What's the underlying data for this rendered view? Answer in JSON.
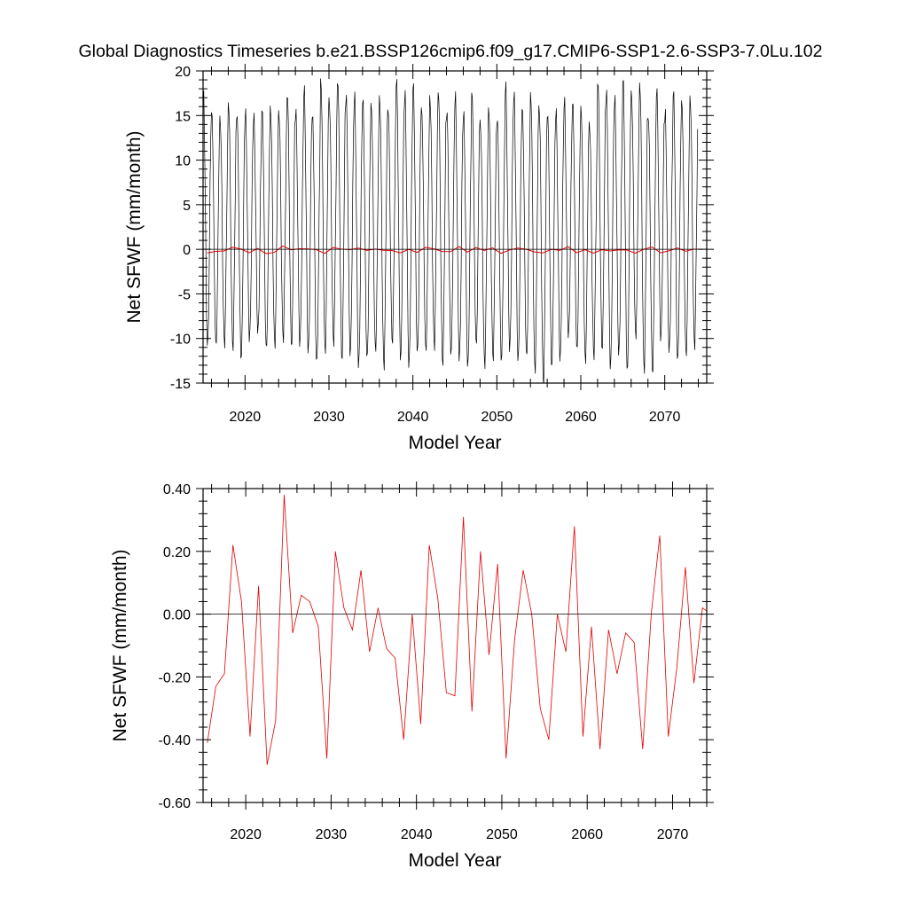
{
  "figure_title": "Global Diagnostics Timeseries b.e21.BSSP126cmip6.f09_g17.CMIP6-SSP1-2.6-SSP3-7.0Lu.102",
  "colors": {
    "monthly": "#000000",
    "annual": "#e00000",
    "zero_line": "#000000",
    "frame": "#000000"
  },
  "chart_data": [
    {
      "type": "line",
      "title": "",
      "xlabel": "Model Year",
      "ylabel": "Net SFWF (mm/month)",
      "xlim": [
        2015,
        2075
      ],
      "ylim": [
        -15,
        20
      ],
      "xticks": [
        2020,
        2030,
        2040,
        2050,
        2060,
        2070
      ],
      "xtick_labels": [
        "2020",
        "2030",
        "2040",
        "2050",
        "2060",
        "2070"
      ],
      "yticks": [
        -15,
        -10,
        -5,
        0,
        5,
        10,
        15,
        20
      ],
      "ytick_labels": [
        "-15",
        "-10",
        "-5",
        "0",
        "5",
        "10",
        "15",
        "20"
      ],
      "reference_line": 0,
      "grid": false,
      "series": [
        {
          "kind": "monthly",
          "x_start": 2015.5,
          "peaks": [
            17.2,
            15.4,
            15.0,
            16.9,
            15.5,
            15.3,
            14.6,
            15.6,
            16.1,
            15.9,
            17.8,
            15.4,
            17.7,
            14.9,
            19.2,
            17.3,
            19.4,
            17.2,
            17.0,
            16.6,
            16.4,
            17.5,
            16.3,
            19.2,
            17.2,
            18.3,
            15.9,
            17.4,
            18.2,
            15.6,
            17.1,
            15.0,
            17.6,
            14.6,
            16.4,
            14.9,
            18.3,
            17.1,
            15.8,
            17.7,
            16.6,
            15.6,
            15.4,
            16.4,
            16.4,
            16.1,
            14.6,
            19.3,
            17.7,
            16.6,
            19.0,
            17.8,
            19.0,
            15.4,
            18.0,
            15.0,
            17.5,
            16.7,
            17.4
          ],
          "troughs": [
            -11.3,
            -11.0,
            -10.5,
            -10.8,
            -12.3,
            -10.4,
            -9.8,
            -11.5,
            -10.7,
            -9.8,
            -10.8,
            -10.9,
            -12.0,
            -13.1,
            -11.5,
            -10.2,
            -12.3,
            -12.0,
            -13.6,
            -12.7,
            -11.4,
            -12.9,
            -10.3,
            -12.5,
            -13.5,
            -12.1,
            -11.5,
            -10.7,
            -12.7,
            -11.8,
            -12.7,
            -13.7,
            -10.9,
            -12.8,
            -12.0,
            -12.5,
            -11.6,
            -13.0,
            -12.3,
            -13.5,
            -14.8,
            -13.1,
            -12.6,
            -10.3,
            -11.7,
            -12.5,
            -11.7,
            -11.2,
            -13.5,
            -12.2,
            -14.2,
            -9.9,
            -13.3,
            -13.7,
            -10.3,
            -11.8,
            -13.0,
            -12.0,
            -10.6
          ],
          "x_step": 1,
          "note": "12 months per year: seasonal oscillation between annual peak and trough"
        },
        {
          "kind": "annual",
          "x": [
            2015.5,
            2016.5,
            2017.5,
            2018.5,
            2019.5,
            2020.5,
            2021.5,
            2022.5,
            2023.5,
            2024.5,
            2025.5,
            2026.5,
            2027.5,
            2028.5,
            2029.5,
            2030.5,
            2031.5,
            2032.5,
            2033.5,
            2034.5,
            2035.5,
            2036.5,
            2037.5,
            2038.5,
            2039.5,
            2040.5,
            2041.5,
            2042.5,
            2043.5,
            2044.5,
            2045.5,
            2046.5,
            2047.5,
            2048.5,
            2049.5,
            2050.5,
            2051.5,
            2052.5,
            2053.5,
            2054.5,
            2055.5,
            2056.5,
            2057.5,
            2058.5,
            2059.5,
            2060.5,
            2061.5,
            2062.5,
            2063.5,
            2064.5,
            2065.5,
            2066.5,
            2067.5,
            2068.5,
            2069.5,
            2070.5,
            2071.5,
            2072.5,
            2073.5,
            2074.5
          ],
          "values": [
            -0.41,
            -0.23,
            -0.19,
            0.22,
            0.04,
            -0.39,
            0.09,
            -0.48,
            -0.34,
            0.38,
            -0.06,
            0.06,
            0.04,
            -0.04,
            -0.46,
            0.2,
            0.02,
            -0.05,
            0.14,
            -0.12,
            0.02,
            -0.11,
            -0.14,
            -0.4,
            0.0,
            -0.35,
            0.22,
            0.05,
            -0.25,
            -0.26,
            0.31,
            -0.31,
            0.2,
            -0.13,
            0.16,
            -0.46,
            -0.08,
            0.14,
            0.0,
            -0.3,
            -0.4,
            0.0,
            -0.12,
            0.28,
            -0.39,
            -0.04,
            -0.43,
            -0.05,
            -0.19,
            -0.06,
            -0.09,
            -0.43,
            0.0,
            0.25,
            -0.39,
            -0.17,
            0.15,
            -0.22,
            0.02,
            0.0
          ]
        }
      ]
    },
    {
      "type": "line",
      "title": "",
      "xlabel": "Model Year",
      "ylabel": "Net SFWF (mm/month)",
      "xlim": [
        2015,
        2074
      ],
      "ylim": [
        -0.6,
        0.4
      ],
      "xticks": [
        2020,
        2030,
        2040,
        2050,
        2060,
        2070
      ],
      "xtick_labels": [
        "2020",
        "2030",
        "2040",
        "2050",
        "2060",
        "2070"
      ],
      "yticks": [
        -0.6,
        -0.4,
        -0.2,
        0.0,
        0.2,
        0.4
      ],
      "ytick_labels": [
        "-0.60",
        "-0.40",
        "-0.20",
        "0.00",
        "0.20",
        "0.40"
      ],
      "reference_line": 0,
      "grid": false,
      "series": [
        {
          "kind": "annual",
          "x": [
            2015.5,
            2016.5,
            2017.5,
            2018.5,
            2019.5,
            2020.5,
            2021.5,
            2022.5,
            2023.5,
            2024.5,
            2025.5,
            2026.5,
            2027.5,
            2028.5,
            2029.5,
            2030.5,
            2031.5,
            2032.5,
            2033.5,
            2034.5,
            2035.5,
            2036.5,
            2037.5,
            2038.5,
            2039.5,
            2040.5,
            2041.5,
            2042.5,
            2043.5,
            2044.5,
            2045.5,
            2046.5,
            2047.5,
            2048.5,
            2049.5,
            2050.5,
            2051.5,
            2052.5,
            2053.5,
            2054.5,
            2055.5,
            2056.5,
            2057.5,
            2058.5,
            2059.5,
            2060.5,
            2061.5,
            2062.5,
            2063.5,
            2064.5,
            2065.5,
            2066.5,
            2067.5,
            2068.5,
            2069.5,
            2070.5,
            2071.5,
            2072.5,
            2073.5,
            2074.5
          ],
          "values": [
            -0.41,
            -0.23,
            -0.19,
            0.22,
            0.04,
            -0.39,
            0.09,
            -0.48,
            -0.34,
            0.38,
            -0.06,
            0.06,
            0.04,
            -0.04,
            -0.46,
            0.2,
            0.02,
            -0.05,
            0.14,
            -0.12,
            0.02,
            -0.11,
            -0.14,
            -0.4,
            0.0,
            -0.35,
            0.22,
            0.05,
            -0.25,
            -0.26,
            0.31,
            -0.31,
            0.2,
            -0.13,
            0.16,
            -0.46,
            -0.08,
            0.14,
            0.0,
            -0.3,
            -0.4,
            0.0,
            -0.12,
            0.28,
            -0.39,
            -0.04,
            -0.43,
            -0.05,
            -0.19,
            -0.06,
            -0.09,
            -0.43,
            0.0,
            0.25,
            -0.39,
            -0.17,
            0.15,
            -0.22,
            0.02,
            0.0
          ]
        }
      ]
    }
  ]
}
